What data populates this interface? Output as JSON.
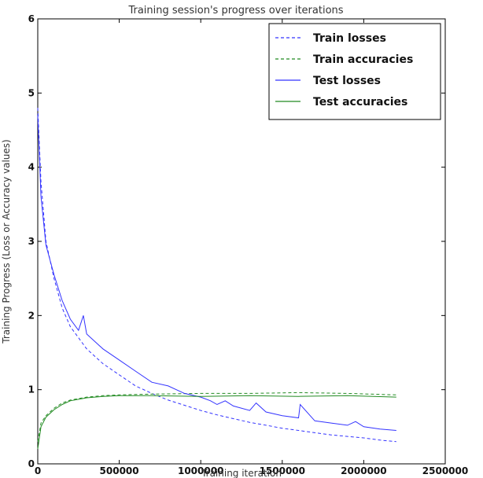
{
  "chart_data": {
    "type": "line",
    "title": "Training session's progress over iterations",
    "xlabel": "Training iteration",
    "ylabel": "Training Progress (Loss or Accuracy values)",
    "xlim": [
      0,
      2500000
    ],
    "ylim": [
      0,
      6
    ],
    "xticks": [
      0,
      500000,
      1000000,
      1500000,
      2000000,
      2500000
    ],
    "xtick_labels": [
      "0",
      "500000",
      "1000000",
      "1500000",
      "2000000",
      "2500000"
    ],
    "yticks": [
      0,
      1,
      2,
      3,
      4,
      5,
      6
    ],
    "ytick_labels": [
      "0",
      "1",
      "2",
      "3",
      "4",
      "5",
      "6"
    ],
    "legend_position": "top-right",
    "series": [
      {
        "name": "Train losses",
        "color": "#3333ff",
        "style": "dashed",
        "x": [
          0,
          20000,
          50000,
          100000,
          150000,
          200000,
          250000,
          300000,
          400000,
          500000,
          600000,
          700000,
          800000,
          900000,
          1000000,
          1100000,
          1200000,
          1300000,
          1400000,
          1500000,
          1600000,
          1700000,
          1800000,
          1900000,
          2000000,
          2100000,
          2200000
        ],
        "y": [
          4.8,
          3.8,
          3.0,
          2.5,
          2.1,
          1.85,
          1.7,
          1.55,
          1.35,
          1.2,
          1.05,
          0.95,
          0.86,
          0.79,
          0.72,
          0.66,
          0.61,
          0.56,
          0.52,
          0.48,
          0.45,
          0.42,
          0.39,
          0.37,
          0.35,
          0.32,
          0.3
        ]
      },
      {
        "name": "Train accuracies",
        "color": "#228b22",
        "style": "dashed",
        "x": [
          0,
          20000,
          50000,
          100000,
          150000,
          200000,
          300000,
          400000,
          500000,
          700000,
          1000000,
          1300000,
          1600000,
          1900000,
          2200000
        ],
        "y": [
          0.3,
          0.55,
          0.65,
          0.75,
          0.82,
          0.86,
          0.9,
          0.92,
          0.93,
          0.94,
          0.95,
          0.95,
          0.96,
          0.95,
          0.93
        ]
      },
      {
        "name": "Test losses",
        "color": "#3333ff",
        "style": "solid",
        "x": [
          0,
          20000,
          50000,
          100000,
          150000,
          200000,
          250000,
          280000,
          300000,
          400000,
          500000,
          600000,
          700000,
          800000,
          900000,
          1000000,
          1060000,
          1100000,
          1150000,
          1200000,
          1300000,
          1340000,
          1400000,
          1500000,
          1600000,
          1610000,
          1700000,
          1800000,
          1900000,
          1950000,
          2000000,
          2100000,
          2200000
        ],
        "y": [
          4.7,
          3.6,
          2.95,
          2.55,
          2.2,
          1.95,
          1.8,
          2.0,
          1.75,
          1.55,
          1.4,
          1.25,
          1.1,
          1.05,
          0.95,
          0.9,
          0.85,
          0.8,
          0.85,
          0.78,
          0.72,
          0.82,
          0.7,
          0.65,
          0.62,
          0.8,
          0.58,
          0.55,
          0.52,
          0.57,
          0.5,
          0.47,
          0.45
        ]
      },
      {
        "name": "Test accuracies",
        "color": "#228b22",
        "style": "solid",
        "x": [
          0,
          20000,
          50000,
          100000,
          150000,
          200000,
          300000,
          400000,
          500000,
          700000,
          1000000,
          1300000,
          1600000,
          1900000,
          2200000
        ],
        "y": [
          0.2,
          0.5,
          0.63,
          0.73,
          0.8,
          0.85,
          0.89,
          0.91,
          0.92,
          0.92,
          0.91,
          0.92,
          0.91,
          0.92,
          0.9
        ]
      }
    ]
  }
}
